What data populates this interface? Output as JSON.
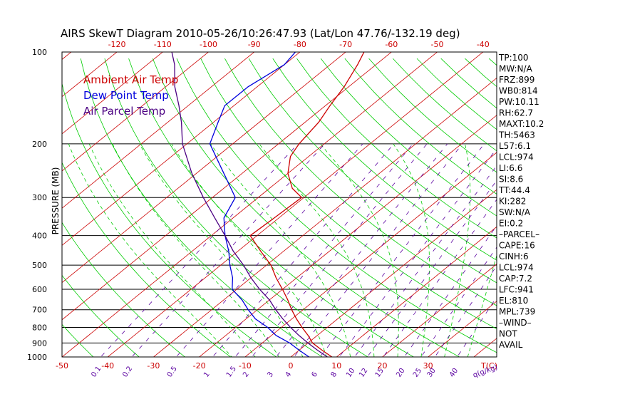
{
  "chart_data": {
    "type": "line",
    "title": "AIRS SkewT Diagram 2010-05-26/10:26:47.93 (Lat/Lon 47.76/-132.19 deg)",
    "ylabel": "PRESSURE (MB)",
    "y_scale": "log",
    "ylim": [
      1000,
      100
    ],
    "xlim_bottom_at_1000mb": [
      -50,
      45
    ],
    "pressure_ticks": [
      100,
      200,
      300,
      400,
      500,
      600,
      700,
      800,
      900,
      1000
    ],
    "bottom_temp_ticks": [
      -50,
      -40,
      -30,
      -20,
      -10,
      0,
      10,
      20,
      30
    ],
    "bottom_axis_unit": "T(C)",
    "top_temp_ticks": [
      -120,
      -110,
      -100,
      -90,
      -80,
      -70,
      -60,
      -50,
      -40
    ],
    "mixing_ratio_ticks": [
      "0.1",
      "0.2",
      "0.5",
      "1",
      "1.5",
      "2",
      "3",
      "4",
      "6",
      "8",
      "10",
      "12",
      "15",
      "20",
      "25",
      "30",
      "40"
    ],
    "mixing_ratio_unit": "q(g/kg)",
    "legend": [
      "Ambient Air Temp",
      "Dew Point Temp",
      "Air Parcel Temp"
    ],
    "legend_placement": "top-left",
    "series": [
      {
        "name": "Ambient Air Temp",
        "color": "#cc0000",
        "points": [
          [
            1000,
            9
          ],
          [
            950,
            5
          ],
          [
            900,
            1
          ],
          [
            850,
            -2
          ],
          [
            800,
            -5.5
          ],
          [
            750,
            -9
          ],
          [
            700,
            -12.5
          ],
          [
            650,
            -16
          ],
          [
            600,
            -20
          ],
          [
            550,
            -24.5
          ],
          [
            500,
            -29
          ],
          [
            450,
            -35
          ],
          [
            400,
            -41.5
          ],
          [
            350,
            -41
          ],
          [
            300,
            -40.5
          ],
          [
            280,
            -45
          ],
          [
            250,
            -50
          ],
          [
            220,
            -54
          ],
          [
            200,
            -55.5
          ],
          [
            170,
            -57
          ],
          [
            150,
            -59
          ],
          [
            130,
            -61
          ],
          [
            110,
            -64
          ],
          [
            100,
            -66
          ]
        ]
      },
      {
        "name": "Dew Point Temp",
        "color": "#0000dd",
        "points": [
          [
            1000,
            4
          ],
          [
            950,
            0
          ],
          [
            900,
            -4
          ],
          [
            850,
            -9
          ],
          [
            800,
            -13
          ],
          [
            750,
            -18
          ],
          [
            700,
            -22
          ],
          [
            650,
            -26
          ],
          [
            600,
            -31
          ],
          [
            550,
            -34
          ],
          [
            500,
            -38
          ],
          [
            450,
            -42
          ],
          [
            400,
            -47
          ],
          [
            350,
            -52
          ],
          [
            300,
            -55
          ],
          [
            250,
            -64
          ],
          [
            200,
            -75
          ],
          [
            170,
            -79
          ],
          [
            150,
            -82
          ],
          [
            130,
            -82
          ],
          [
            110,
            -80
          ],
          [
            100,
            -81
          ]
        ]
      },
      {
        "name": "Air Parcel Temp",
        "color": "#4b0082",
        "points": [
          [
            1000,
            8
          ],
          [
            950,
            4
          ],
          [
            900,
            0
          ],
          [
            850,
            -4
          ],
          [
            800,
            -8
          ],
          [
            750,
            -12
          ],
          [
            700,
            -16
          ],
          [
            650,
            -20
          ],
          [
            600,
            -25
          ],
          [
            550,
            -30
          ],
          [
            500,
            -35
          ],
          [
            450,
            -41
          ],
          [
            400,
            -47
          ],
          [
            350,
            -54
          ],
          [
            300,
            -62
          ],
          [
            250,
            -71
          ],
          [
            200,
            -81
          ],
          [
            170,
            -87
          ],
          [
            150,
            -92
          ],
          [
            130,
            -98
          ],
          [
            110,
            -104
          ],
          [
            100,
            -108
          ]
        ]
      }
    ]
  },
  "indices": [
    {
      "key": "TP",
      "value": "100"
    },
    {
      "key": "MW",
      "value": "N/A"
    },
    {
      "key": "FRZ",
      "value": "899"
    },
    {
      "key": "WB0",
      "value": "814"
    },
    {
      "key": "PW",
      "value": "10.11"
    },
    {
      "key": "RH",
      "value": "62.7"
    },
    {
      "key": "MAXT",
      "value": "10.2"
    },
    {
      "key": "TH",
      "value": "5463"
    },
    {
      "key": "L57",
      "value": "6.1"
    },
    {
      "key": "LCL",
      "value": "974"
    },
    {
      "key": "LI",
      "value": "6.6"
    },
    {
      "key": "SI",
      "value": "8.6"
    },
    {
      "key": "TT",
      "value": "44.4"
    },
    {
      "key": "KI",
      "value": "282"
    },
    {
      "key": "SW",
      "value": "N/A"
    },
    {
      "key": "EI",
      "value": "0.2"
    },
    {
      "key": "",
      "value": "–PARCEL–"
    },
    {
      "key": "CAPE",
      "value": "16"
    },
    {
      "key": "CINH",
      "value": "6"
    },
    {
      "key": "LCL",
      "value": "974"
    },
    {
      "key": "CAP",
      "value": "7.2"
    },
    {
      "key": "LFC",
      "value": "941"
    },
    {
      "key": "EL",
      "value": "810"
    },
    {
      "key": "MPL",
      "value": "739"
    },
    {
      "key": "",
      "value": "–WIND–"
    },
    {
      "key": "",
      "value": "NOT"
    },
    {
      "key": "",
      "value": "AVAIL"
    }
  ],
  "colors": {
    "isotherm": "#cc0000",
    "dry_adiabat": "#00cc00",
    "moist_adiabat": "#00cc00",
    "mixing_ratio": "#5a00a0",
    "isobar": "#000000",
    "bottom_ticks": "#cc0000",
    "mixing_labels": "#5a00a0"
  }
}
